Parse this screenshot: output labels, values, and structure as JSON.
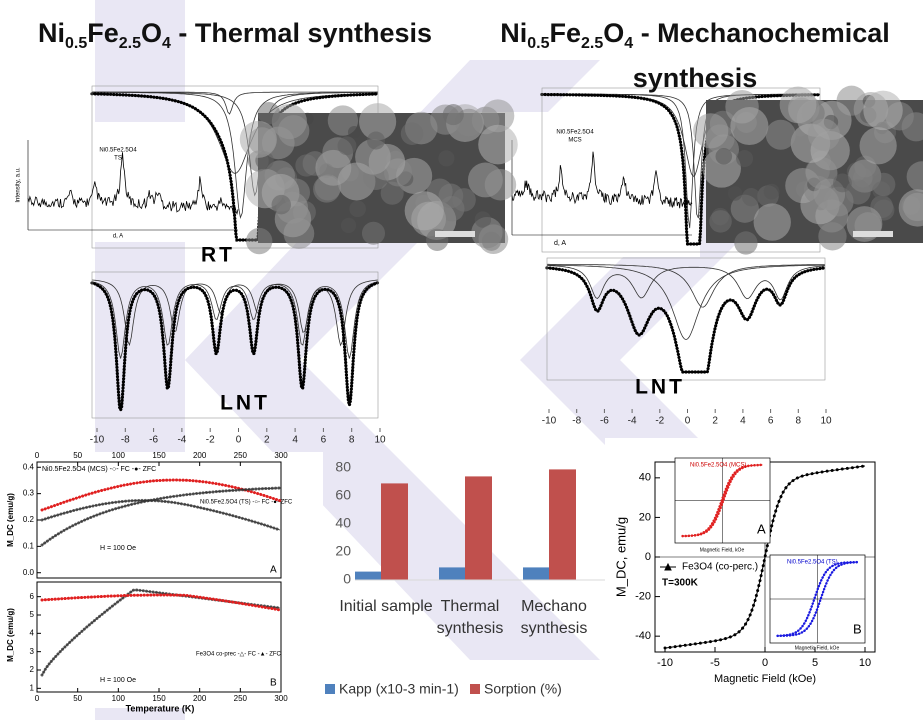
{
  "left_title": {
    "formula": [
      "Ni",
      "0.5",
      "Fe",
      "2.5",
      "O",
      "4"
    ],
    "rest": "- Thermal synthesis"
  },
  "right_title": {
    "formula": [
      "Ni",
      "0.5",
      "Fe",
      "2.5",
      "O",
      "4"
    ],
    "rest": "- Mechanochemical",
    "rest2": "synthesis"
  },
  "rt_label": "RT",
  "lnt_left": "LNT",
  "lnt_right": "LNT",
  "mossbauer_xlim": [
    -10,
    10
  ],
  "mossbauer_xticks": [
    -10,
    -8,
    -6,
    -4,
    -2,
    0,
    2,
    4,
    6,
    8,
    10
  ],
  "xrd_left": {
    "label": "Ni0.5Fe2.5O4",
    "sample": "TS",
    "xlabel": "d, A",
    "ylabel": "Intensity, a.u."
  },
  "xrd_right": {
    "label": "Ni0.5Fe2.5O4",
    "sample": "MCS",
    "xlabel": "d, A"
  },
  "mt_panel": {
    "legend_mcs": "Ni0.5Fe2.5O4 (MCS) -○- FC -●- ZFC",
    "legend_ts": "Ni0.5Fe2.5O4 (TS) -○- FC -●- ZFC",
    "legend_fe": "Fe3O4 co-prec -△- FC -▲- ZFC",
    "field_top": "H = 100 Oe",
    "field_bottom": "H = 100 Oe",
    "ylabel_top": "M_DC (emu/g)",
    "ylabel_bottom": "M_DC (emu/g)",
    "xlabel": "Temperature (K)",
    "panel_a": "A",
    "panel_b": "B",
    "xlim": [
      0,
      300
    ],
    "xticks": [
      0,
      50,
      100,
      150,
      200,
      250,
      300
    ],
    "ylim_top": [
      -0.02,
      0.42
    ],
    "yticks_top": [
      {
        "value": 0,
        "label": "0.0"
      },
      0.1,
      0.2,
      0.3,
      0.4
    ],
    "ylim_bottom": [
      0.8,
      6.8
    ],
    "yticks_bottom": [
      1,
      2,
      3,
      4,
      5,
      6
    ]
  },
  "mh_panel": {
    "ylabel": "M_DC, emu/g",
    "xlabel": "Magnetic Field (kOe)",
    "legend": "Fe3O4 (co-perc.)",
    "temp": "T=300K",
    "inset_a": "Ni0.5Fe2.5O4 (MCS)",
    "inset_b": "Ni0.5Fe2.5O4 (TS)",
    "inset_xlabel": "Magnetic Field, kOe",
    "panel_a": "A",
    "panel_b": "B",
    "xlim": [
      -11,
      11
    ],
    "xticks": [
      -10,
      -5,
      0,
      5,
      10
    ],
    "ylim": [
      -48,
      48
    ],
    "yticks": [
      -40,
      -20,
      0,
      20,
      40
    ]
  },
  "chart_data": {
    "type": "bar",
    "categories": [
      "Initial sample",
      "Thermal synthesis",
      "Mechano synthesis"
    ],
    "series": [
      {
        "name": "Kapp (x10-3 min-1)",
        "color": "#4f81bd",
        "values": [
          6,
          9,
          9
        ]
      },
      {
        "name": "Sorption (%)",
        "color": "#c0504d",
        "values": [
          69,
          74,
          79
        ]
      }
    ],
    "ylim": [
      0,
      80
    ],
    "yticks": [
      0,
      20,
      40,
      60,
      80
    ],
    "grid": false,
    "legend": "bottom"
  }
}
